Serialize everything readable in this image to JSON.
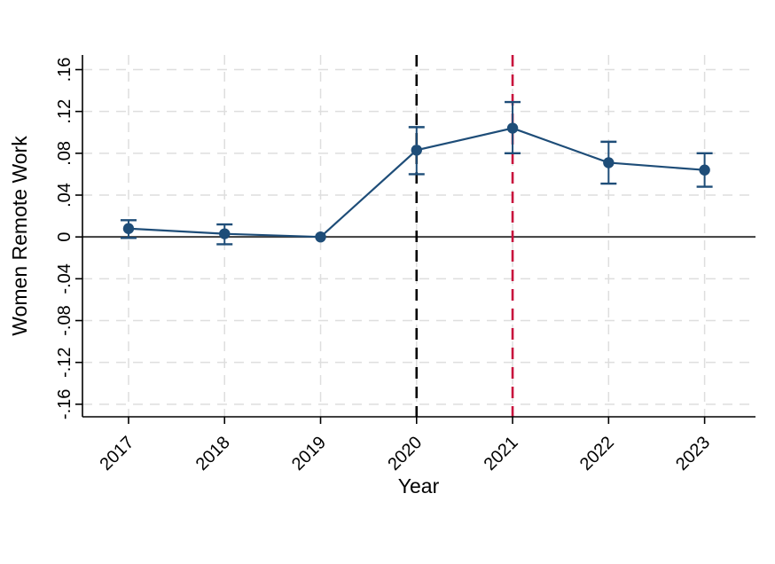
{
  "chart_data": {
    "type": "line",
    "title": "",
    "xlabel": "Year",
    "ylabel": "Women Remote Work",
    "x": [
      2017,
      2018,
      2019,
      2020,
      2021,
      2022,
      2023
    ],
    "xtick_labels": [
      "2017",
      "2018",
      "2019",
      "2020",
      "2021",
      "2022",
      "2023"
    ],
    "yticks": [
      0.16,
      0.12,
      0.08,
      0.04,
      0,
      -0.04,
      -0.08,
      -0.12,
      -0.16
    ],
    "ytick_labels": [
      ".16",
      ".12",
      ".08",
      ".04",
      "0",
      "-.04",
      "-.08",
      "-.12",
      "-.16"
    ],
    "xlim": [
      2016.52,
      2023.53
    ],
    "ylim": [
      -0.172,
      0.174
    ],
    "grid": {
      "show": true,
      "style": "dashed",
      "color": "#dedede",
      "horizontal": true,
      "vertical": true
    },
    "legend": "none",
    "series": [
      {
        "name": "Women Remote Work estimate",
        "color": "#1e4d78",
        "marker": "circle",
        "estimates": [
          0.008,
          0.003,
          0.0,
          0.083,
          0.104,
          0.071,
          0.064
        ],
        "ci_low": [
          -0.001,
          -0.007,
          0.0,
          0.06,
          0.08,
          0.051,
          0.048
        ],
        "ci_high": [
          0.016,
          0.012,
          0.0,
          0.105,
          0.129,
          0.091,
          0.08
        ]
      }
    ],
    "zero_line": {
      "y": 0,
      "color": "#3c3c3c",
      "style": "solid"
    },
    "reference_lines": [
      {
        "x": 2020,
        "color": "#000000",
        "style": "dashed"
      },
      {
        "x": 2021,
        "color": "#c8103c",
        "style": "dashed"
      }
    ],
    "axis_color": "#000000",
    "text_color": "#000000",
    "background": "#ffffff"
  }
}
